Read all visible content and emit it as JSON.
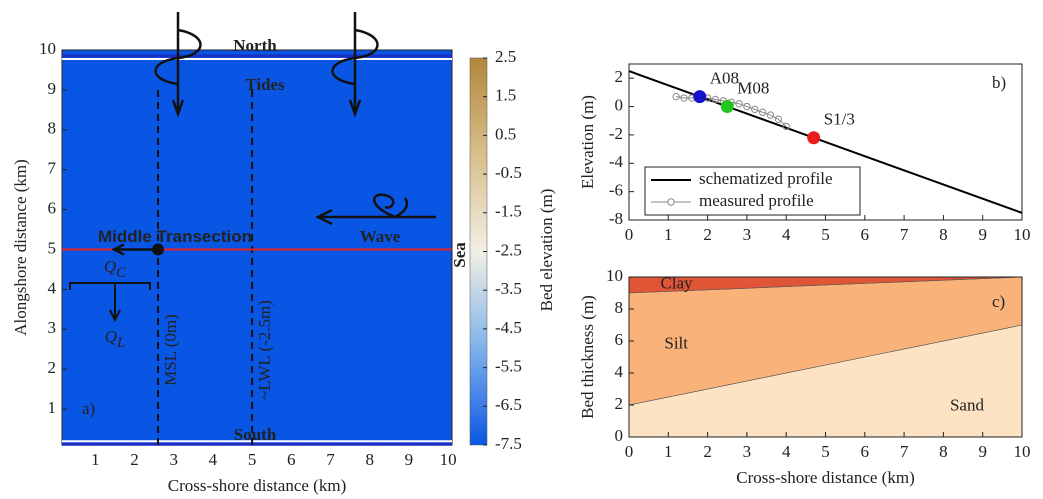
{
  "chart_data": [
    {
      "type": "heatmap",
      "panel_label": "a)",
      "xlabel": "Cross-shore distance (km)",
      "ylabel": "Alongshore distance (km)",
      "xlim": [
        0.15,
        10.1
      ],
      "ylim": [
        0.1,
        10.0
      ],
      "xticks": [
        1,
        2,
        3,
        4,
        5,
        6,
        7,
        8,
        9,
        10
      ],
      "yticks": [
        1,
        2,
        3,
        4,
        5,
        6,
        7,
        8,
        9,
        10
      ],
      "x": [
        0.15,
        10.1
      ],
      "elevation": [
        2.5,
        -7.5
      ],
      "colorbar": {
        "label": "Bed elevation (m)",
        "lim": [
          -7.5,
          2.5
        ],
        "ticks": [
          2.5,
          1.5,
          0.5,
          -0.5,
          -1.5,
          -2.5,
          -3.5,
          -4.5,
          -5.5,
          -6.5,
          -7.5
        ],
        "colors": [
          "#0a56e4",
          "#7fb2ea",
          "#f2efe4",
          "#d8bf8c",
          "#b3873a"
        ]
      },
      "boundaries": [
        {
          "label": "North",
          "y": 9.85,
          "color": "#1c2fc2"
        },
        {
          "label": "South",
          "y": 0.12,
          "color": "#1c2fc2"
        }
      ],
      "transect": {
        "label": "Middle Transection",
        "y": 5,
        "color": "#e8231e"
      },
      "lines": [
        {
          "label": "MSL (0m)",
          "x": 2.6
        },
        {
          "label": "~LWL (-2.5m)",
          "x": 5
        }
      ],
      "annotations": {
        "tides": "Tides",
        "wave": "Wave",
        "sea": "Sea"
      },
      "fluxes": [
        {
          "symbol": "Q",
          "subscript": "C"
        },
        {
          "symbol": "Q",
          "subscript": "L"
        }
      ]
    },
    {
      "type": "line",
      "panel_label": "b)",
      "ylabel": "Elevation (m)",
      "xlim": [
        0,
        10
      ],
      "ylim": [
        -8,
        3
      ],
      "xticks": [
        0,
        1,
        2,
        3,
        4,
        5,
        6,
        7,
        8,
        9,
        10
      ],
      "yticks": [
        -8,
        -6,
        -4,
        -2,
        0,
        2
      ],
      "legend": "lower left",
      "series": [
        {
          "name": "schematized profile",
          "color": "#000000",
          "x": [
            0,
            10
          ],
          "values": [
            2.5,
            -7.5
          ]
        },
        {
          "name": "measured profile",
          "color": "#888888",
          "marker": "circle",
          "x": [
            1.2,
            1.4,
            1.6,
            1.8,
            2.0,
            2.2,
            2.4,
            2.6,
            2.8,
            3.0,
            3.2,
            3.4,
            3.6,
            3.8,
            4.0
          ],
          "values": [
            0.7,
            0.6,
            0.6,
            0.6,
            0.6,
            0.5,
            0.4,
            0.3,
            0.2,
            0.0,
            -0.2,
            -0.4,
            -0.6,
            -0.9,
            -1.4
          ]
        }
      ],
      "stations": [
        {
          "name": "A08",
          "color": "#1414c8",
          "x": 1.8,
          "value": 0.7
        },
        {
          "name": "M08",
          "color": "#22c422",
          "x": 2.5,
          "value": 0.0
        },
        {
          "name": "S1/3",
          "color": "#e81e1e",
          "x": 4.7,
          "value": -2.2
        }
      ]
    },
    {
      "type": "area",
      "panel_label": "c)",
      "xlabel": "Cross-shore distance (km)",
      "ylabel": "Bed thickness (m)",
      "xlim": [
        0,
        10
      ],
      "ylim": [
        0,
        10
      ],
      "xticks": [
        0,
        1,
        2,
        3,
        4,
        5,
        6,
        7,
        8,
        9,
        10
      ],
      "yticks": [
        0,
        2,
        4,
        6,
        8,
        10
      ],
      "x": [
        0,
        10
      ],
      "series": [
        {
          "name": "Sand",
          "color": "#fde2c3",
          "values": [
            2,
            7
          ]
        },
        {
          "name": "Silt",
          "color": "#f8b27a",
          "values": [
            7,
            3
          ]
        },
        {
          "name": "Clay",
          "color": "#df5535",
          "values": [
            1,
            0
          ]
        }
      ]
    }
  ]
}
